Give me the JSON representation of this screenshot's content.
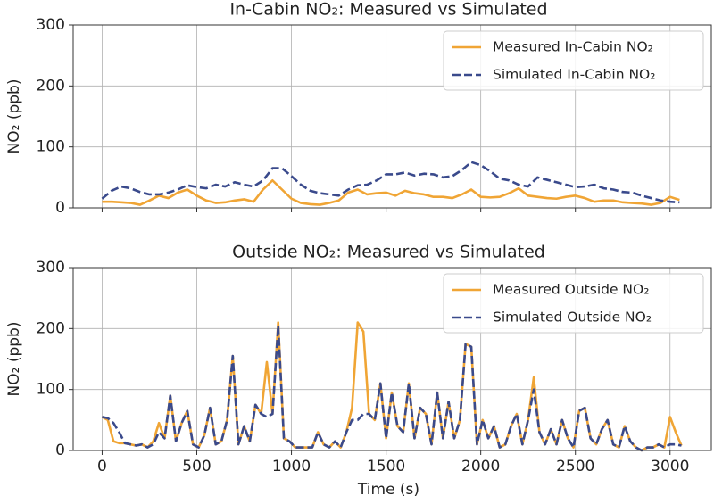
{
  "chart_data": [
    {
      "type": "line",
      "title": "In-Cabin NO₂: Measured vs Simulated",
      "ylabel": "NO₂ (ppb)",
      "x": [
        0,
        50,
        100,
        150,
        200,
        250,
        300,
        350,
        400,
        450,
        500,
        550,
        600,
        650,
        700,
        750,
        800,
        850,
        900,
        950,
        1000,
        1050,
        1100,
        1150,
        1200,
        1250,
        1300,
        1350,
        1400,
        1450,
        1500,
        1550,
        1600,
        1650,
        1700,
        1750,
        1800,
        1850,
        1900,
        1950,
        2000,
        2050,
        2100,
        2150,
        2200,
        2250,
        2300,
        2350,
        2400,
        2450,
        2500,
        2550,
        2600,
        2650,
        2700,
        2750,
        2800,
        2850,
        2900,
        2950,
        3000,
        3050
      ],
      "series": [
        {
          "name": "Measured In-Cabin NO₂",
          "color": "#f0a535",
          "linestyle": "solid",
          "values": [
            10,
            10,
            9,
            8,
            5,
            12,
            20,
            16,
            25,
            30,
            20,
            12,
            8,
            9,
            12,
            14,
            10,
            30,
            45,
            30,
            15,
            8,
            6,
            5,
            8,
            12,
            25,
            30,
            22,
            24,
            25,
            20,
            28,
            24,
            22,
            18,
            18,
            16,
            22,
            30,
            18,
            17,
            18,
            24,
            32,
            20,
            18,
            16,
            15,
            18,
            20,
            16,
            10,
            12,
            12,
            9,
            8,
            7,
            5,
            8,
            18,
            13
          ]
        },
        {
          "name": "Simulated In-Cabin NO₂",
          "color": "#3a4a8c",
          "linestyle": "dashed",
          "values": [
            15,
            28,
            35,
            32,
            26,
            22,
            22,
            25,
            30,
            37,
            34,
            32,
            38,
            35,
            42,
            38,
            35,
            45,
            65,
            65,
            52,
            38,
            28,
            24,
            22,
            20,
            30,
            37,
            38,
            45,
            55,
            55,
            58,
            53,
            56,
            55,
            50,
            52,
            62,
            75,
            70,
            60,
            48,
            45,
            38,
            35,
            50,
            46,
            42,
            38,
            34,
            35,
            38,
            32,
            30,
            26,
            25,
            20,
            16,
            12,
            10,
            9
          ]
        }
      ],
      "xlim": [
        -153,
        3218
      ],
      "xticks": [
        0,
        500,
        1000,
        1500,
        2000,
        2500,
        3000
      ],
      "xtick_labels": false,
      "ylim": [
        0,
        300
      ],
      "yticks": [
        0,
        100,
        200,
        300
      ],
      "grid": true,
      "legend": "upper right"
    },
    {
      "type": "line",
      "title": "Outside NO₂: Measured vs Simulated",
      "ylabel": "NO₂ (ppb)",
      "xlabel": "Time (s)",
      "x": [
        0,
        30,
        60,
        90,
        120,
        150,
        180,
        210,
        240,
        270,
        300,
        330,
        360,
        390,
        420,
        450,
        480,
        510,
        540,
        570,
        600,
        630,
        660,
        690,
        720,
        750,
        780,
        810,
        840,
        870,
        900,
        930,
        960,
        990,
        1020,
        1050,
        1080,
        1110,
        1140,
        1170,
        1200,
        1230,
        1260,
        1290,
        1320,
        1350,
        1380,
        1410,
        1440,
        1470,
        1500,
        1530,
        1560,
        1590,
        1620,
        1650,
        1680,
        1710,
        1740,
        1770,
        1800,
        1830,
        1860,
        1890,
        1920,
        1950,
        1980,
        2010,
        2040,
        2070,
        2100,
        2130,
        2160,
        2190,
        2220,
        2250,
        2280,
        2310,
        2340,
        2370,
        2400,
        2430,
        2460,
        2490,
        2520,
        2550,
        2580,
        2610,
        2640,
        2670,
        2700,
        2730,
        2760,
        2790,
        2820,
        2850,
        2880,
        2910,
        2940,
        2970,
        3000,
        3030,
        3060
      ],
      "series": [
        {
          "name": "Measured Outside NO₂",
          "color": "#f0a535",
          "linestyle": "solid",
          "values": [
            55,
            50,
            15,
            12,
            12,
            10,
            8,
            10,
            5,
            15,
            45,
            20,
            90,
            15,
            45,
            65,
            10,
            5,
            25,
            70,
            10,
            15,
            50,
            155,
            10,
            40,
            15,
            75,
            60,
            145,
            60,
            210,
            20,
            15,
            5,
            5,
            5,
            5,
            30,
            10,
            5,
            15,
            5,
            30,
            70,
            210,
            195,
            60,
            50,
            110,
            20,
            95,
            40,
            30,
            110,
            20,
            70,
            60,
            10,
            95,
            20,
            80,
            20,
            50,
            175,
            170,
            10,
            50,
            20,
            40,
            5,
            10,
            40,
            60,
            10,
            50,
            120,
            30,
            10,
            35,
            10,
            50,
            20,
            5,
            65,
            70,
            20,
            10,
            35,
            50,
            10,
            5,
            40,
            15,
            5,
            0,
            5,
            5,
            10,
            5,
            55,
            30,
            8
          ]
        },
        {
          "name": "Simulated Outside NO₂",
          "color": "#3a4a8c",
          "linestyle": "dashed",
          "values": [
            55,
            53,
            45,
            30,
            12,
            10,
            8,
            10,
            5,
            10,
            30,
            20,
            90,
            15,
            45,
            65,
            10,
            5,
            25,
            70,
            10,
            15,
            50,
            155,
            10,
            40,
            15,
            75,
            60,
            55,
            60,
            205,
            20,
            15,
            5,
            5,
            5,
            5,
            30,
            10,
            5,
            15,
            5,
            30,
            50,
            50,
            60,
            60,
            50,
            110,
            20,
            95,
            40,
            30,
            110,
            20,
            70,
            60,
            10,
            95,
            20,
            80,
            20,
            50,
            175,
            170,
            10,
            50,
            20,
            40,
            5,
            10,
            40,
            60,
            10,
            50,
            100,
            30,
            10,
            35,
            10,
            50,
            20,
            5,
            65,
            70,
            20,
            10,
            35,
            50,
            10,
            5,
            40,
            15,
            5,
            0,
            5,
            5,
            10,
            5,
            10,
            10,
            8
          ]
        }
      ],
      "xlim": [
        -153,
        3218
      ],
      "xticks": [
        0,
        500,
        1000,
        1500,
        2000,
        2500,
        3000
      ],
      "xtick_labels": true,
      "ylim": [
        0,
        300
      ],
      "yticks": [
        0,
        100,
        200,
        300
      ],
      "grid": true,
      "legend": "upper right"
    }
  ]
}
